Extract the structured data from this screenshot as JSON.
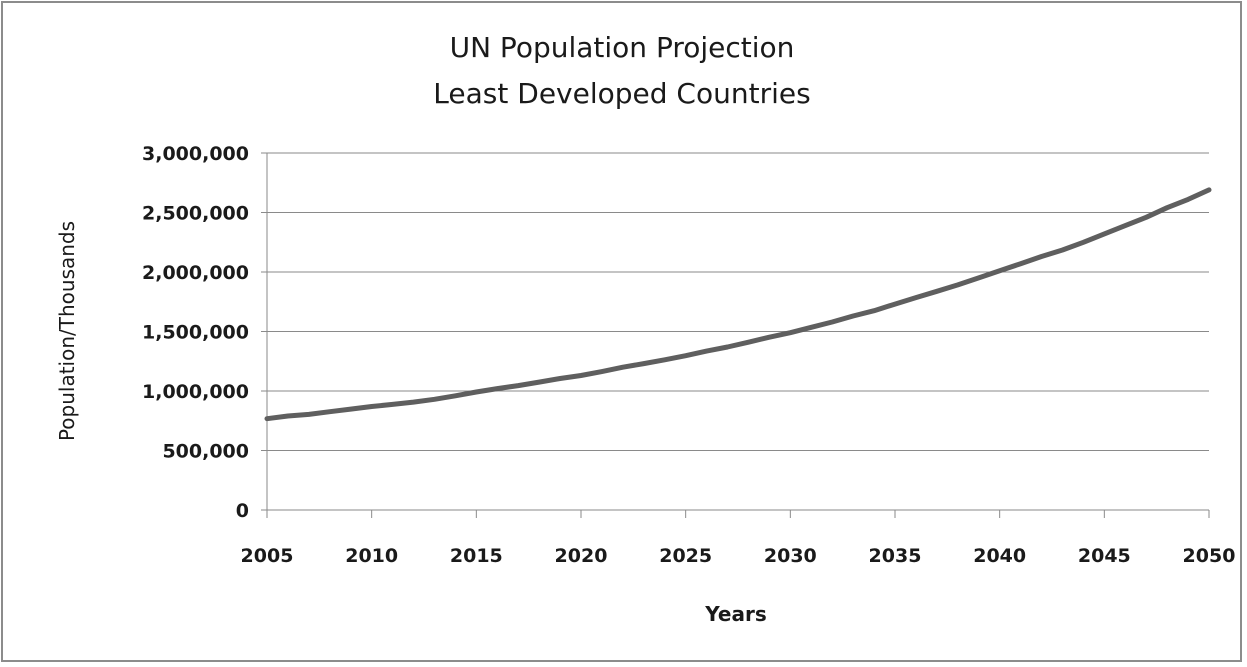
{
  "chart_data": {
    "type": "line",
    "title": [
      "UN Population Projection",
      "Least Developed Countries"
    ],
    "xlabel": "Years",
    "ylabel": "Population/Thousands",
    "xlim": [
      2005,
      2050
    ],
    "ylim": [
      0,
      3000000
    ],
    "grid": true,
    "legend": "none",
    "x_tick_labels": [
      "2005",
      "2010",
      "2015",
      "2020",
      "2025",
      "2030",
      "2035",
      "2040",
      "2045",
      "2050"
    ],
    "y_tick_labels": [
      "0",
      "500,000",
      "1,000,000",
      "1,500,000",
      "2,000,000",
      "2,500,000",
      "3,000,000"
    ],
    "x_ticks": [
      2005,
      2010,
      2015,
      2020,
      2025,
      2030,
      2035,
      2040,
      2045,
      2050
    ],
    "y_ticks": [
      0,
      500000,
      1000000,
      1500000,
      2000000,
      2500000,
      3000000
    ],
    "series": [
      {
        "color": "#5f5f5f",
        "x": [
          2005,
          2006,
          2007,
          2008,
          2009,
          2010,
          2011,
          2012,
          2013,
          2014,
          2015,
          2016,
          2017,
          2018,
          2019,
          2020,
          2021,
          2022,
          2023,
          2024,
          2025,
          2026,
          2027,
          2028,
          2029,
          2030,
          2031,
          2032,
          2033,
          2034,
          2035,
          2036,
          2037,
          2038,
          2039,
          2040,
          2041,
          2042,
          2043,
          2044,
          2045,
          2046,
          2047,
          2048,
          2049,
          2050
        ],
        "values": [
          767000,
          790000,
          803000,
          826000,
          848000,
          870000,
          887000,
          907000,
          930000,
          960000,
          992000,
          1020000,
          1045000,
          1075000,
          1105000,
          1130000,
          1163000,
          1200000,
          1230000,
          1262000,
          1297000,
          1335000,
          1370000,
          1410000,
          1452000,
          1490000,
          1535000,
          1580000,
          1630000,
          1675000,
          1730000,
          1785000,
          1838000,
          1892000,
          1950000,
          2010000,
          2070000,
          2130000,
          2185000,
          2250000,
          2320000,
          2390000,
          2460000,
          2540000,
          2610000,
          2690000
        ]
      }
    ]
  }
}
